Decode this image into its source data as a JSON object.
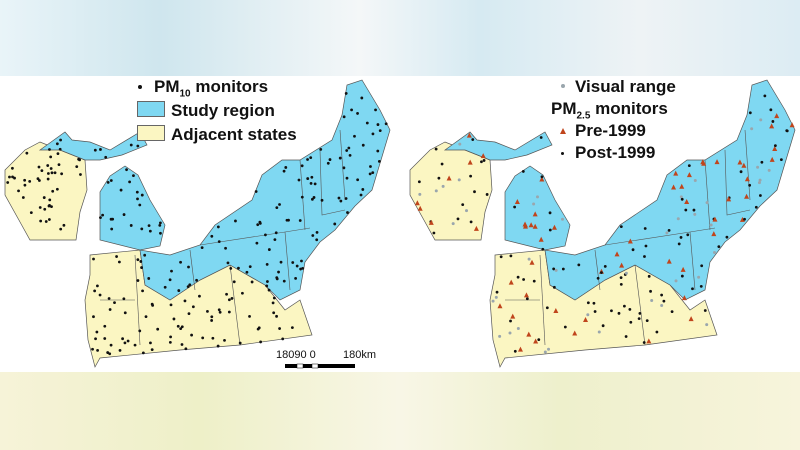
{
  "colors": {
    "study_region": "#7fd8f2",
    "adjacent_states": "#fbf6c2",
    "monitor": "#111111",
    "pre1999": "#c0451c",
    "visual_range": "#9aa6ad"
  },
  "left_map": {
    "legend": {
      "monitors_prefix": "PM",
      "monitors_sub": "10",
      "monitors_suffix": " monitors",
      "study_region": "Study region",
      "adjacent_states": "Adjacent states"
    },
    "scale_bar": {
      "labels": "18090  0",
      "end_label": "180km"
    }
  },
  "right_map": {
    "legend": {
      "visual_range": "Visual range",
      "monitors_prefix": "PM",
      "monitors_sub": "2.5",
      "monitors_suffix": " monitors",
      "pre": "Pre-1999",
      "post": "Post-1999"
    }
  }
}
